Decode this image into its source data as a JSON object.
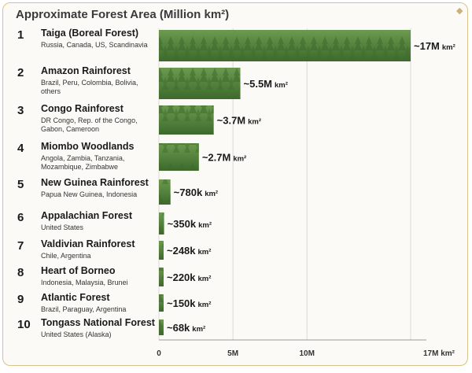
{
  "chart_data": {
    "type": "bar",
    "title": "Approximate Forest Area (Million km²)",
    "xlim": [
      0,
      17
    ],
    "x_ticks": [
      "0",
      "5M",
      "10M",
      "17M km²"
    ],
    "x_tick_values": [
      0,
      5,
      10,
      17
    ],
    "items": [
      {
        "rank": "1",
        "name": "Taiga (Boreal Forest)",
        "regions": "Russia, Canada, US, Scandinavia",
        "value": 17,
        "label_main": "~17M",
        "label_unit": "km²"
      },
      {
        "rank": "2",
        "name": "Amazon Rainforest",
        "regions": "Brazil, Peru, Colombia, Bolivia, others",
        "value": 5.5,
        "label_main": "~5.5M",
        "label_unit": "km²"
      },
      {
        "rank": "3",
        "name": "Congo Rainforest",
        "regions": "DR Congo, Rep. of the Congo, Gabon, Cameroon",
        "value": 3.7,
        "label_main": "~3.7M",
        "label_unit": "km²"
      },
      {
        "rank": "4",
        "name": "Miombo Woodlands",
        "regions": "Angola, Zambia, Tanzania, Mozambique, Zimbabwe",
        "value": 2.7,
        "label_main": "~2.7M",
        "label_unit": "km²"
      },
      {
        "rank": "5",
        "name": "New Guinea Rainforest",
        "regions": "Papua New Guinea, Indonesia",
        "value": 0.78,
        "label_main": "~780k",
        "label_unit": "km²"
      },
      {
        "rank": "6",
        "name": "Appalachian Forest",
        "regions": "United States",
        "value": 0.35,
        "label_main": "~350k",
        "label_unit": "km²"
      },
      {
        "rank": "7",
        "name": "Valdivian Rainforest",
        "regions": "Chile, Argentina",
        "value": 0.248,
        "label_main": "~248k",
        "label_unit": "km²"
      },
      {
        "rank": "8",
        "name": "Heart of Borneo",
        "regions": "Indonesia, Malaysia, Brunei",
        "value": 0.22,
        "label_main": "~220k",
        "label_unit": "km²"
      },
      {
        "rank": "9",
        "name": "Atlantic Forest",
        "regions": "Brazil, Paraguay, Argentina",
        "value": 0.15,
        "label_main": "~150k",
        "label_unit": "km²"
      },
      {
        "rank": "10",
        "name": "Tongass National Forest",
        "regions": "United States (Alaska)",
        "value": 0.068,
        "label_main": "~68k",
        "label_unit": "km²"
      }
    ],
    "colors": {
      "bar_dark": "#3d6a2c",
      "bar_mid": "#4f7f37",
      "bar_light": "#6c9a4f",
      "grid": "#d9d9d9"
    }
  }
}
